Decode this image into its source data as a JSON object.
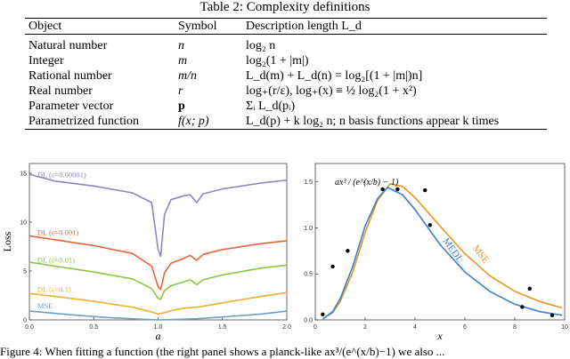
{
  "caption": "Table 2: Complexity definitions",
  "table": {
    "headers": [
      "Object",
      "Symbol",
      "Description length L_d"
    ],
    "rows": [
      {
        "object": "Natural number",
        "symbol": "n",
        "desc": "log₂ n"
      },
      {
        "object": "Integer",
        "symbol": "m",
        "desc": "log₂(1 + |m|)"
      },
      {
        "object": "Rational number",
        "symbol": "m/n",
        "desc": "L_d(m) + L_d(n) = log₂[(1 + |m|)n]"
      },
      {
        "object": "Real number",
        "symbol": "r",
        "desc": "log₊(r/ε),   log₊(x) ≡ ½ log₂(1 + x²)"
      },
      {
        "object": "Parameter vector",
        "symbol": "p",
        "desc": "Σᵢ L_d(pᵢ)"
      },
      {
        "object": "Parametrized function",
        "symbol": "f(x; p)",
        "desc": "L_d(p) + k log₂ n; n basis functions appear k times"
      }
    ]
  },
  "chart_data": [
    {
      "type": "line",
      "title": "",
      "xlabel": "a",
      "ylabel": "Loss",
      "xlim": [
        0,
        2
      ],
      "ylim": [
        0,
        16
      ],
      "xticks": [
        "0.0",
        "0.5",
        "1.0",
        "1.5",
        "2.0"
      ],
      "yticks": [
        "0",
        "5",
        "10",
        "15"
      ],
      "grid": false,
      "series": [
        {
          "name": "DL (ε=0.00001)",
          "color": "#8e86c6",
          "x": [
            0,
            0.2,
            0.5,
            0.8,
            0.95,
            1.0,
            1.02,
            1.05,
            1.1,
            1.2,
            1.25,
            1.3,
            1.35,
            1.5,
            1.8,
            2.0
          ],
          "y": [
            14.9,
            14.2,
            13.7,
            13.0,
            12.0,
            7.2,
            6.5,
            10.8,
            12.3,
            12.7,
            12.8,
            12.0,
            12.9,
            13.4,
            14.0,
            14.3
          ]
        },
        {
          "name": "DL (ε=0.001)",
          "color": "#e8643a",
          "x": [
            0,
            0.2,
            0.5,
            0.8,
            0.95,
            1.0,
            1.02,
            1.05,
            1.1,
            1.2,
            1.25,
            1.3,
            1.35,
            1.5,
            1.8,
            2.0
          ],
          "y": [
            8.6,
            8.2,
            7.6,
            6.8,
            5.5,
            3.4,
            3.1,
            4.8,
            5.8,
            6.3,
            6.6,
            6.1,
            6.7,
            7.2,
            7.8,
            8.1
          ]
        },
        {
          "name": "DL (ε=0.01)",
          "color": "#8cc63f",
          "x": [
            0,
            0.2,
            0.5,
            0.8,
            0.95,
            1.0,
            1.02,
            1.05,
            1.1,
            1.2,
            1.25,
            1.3,
            1.35,
            1.5,
            1.8,
            2.0
          ],
          "y": [
            5.9,
            5.5,
            4.9,
            4.2,
            3.2,
            2.2,
            2.1,
            3.0,
            3.5,
            3.9,
            4.1,
            3.6,
            4.1,
            4.6,
            5.3,
            5.6
          ]
        },
        {
          "name": "DL (ε=0.1)",
          "color": "#f0b030",
          "x": [
            0,
            0.2,
            0.5,
            0.8,
            0.95,
            1.0,
            1.05,
            1.1,
            1.2,
            1.3,
            1.35,
            1.5,
            1.8,
            2.0
          ],
          "y": [
            2.7,
            2.4,
            1.9,
            1.3,
            0.8,
            0.6,
            0.75,
            0.95,
            1.2,
            1.3,
            1.4,
            1.75,
            2.4,
            2.8
          ]
        },
        {
          "name": "MSE",
          "color": "#6aa0c8",
          "x": [
            0,
            0.3,
            0.6,
            0.9,
            1.0,
            1.1,
            1.3,
            1.5,
            1.8,
            2.0
          ],
          "y": [
            0.9,
            0.55,
            0.25,
            0.05,
            0.0,
            0.03,
            0.12,
            0.3,
            0.6,
            0.9
          ]
        }
      ]
    },
    {
      "type": "scatter",
      "title": "",
      "xlabel": "x",
      "ylabel": "",
      "xlim": [
        0,
        10
      ],
      "ylim": [
        0,
        1.7
      ],
      "xticks": [
        "0",
        "2",
        "4",
        "6",
        "8",
        "10"
      ],
      "yticks": [
        "0.0",
        "0.5",
        "1.0",
        "1.5"
      ],
      "grid": false,
      "formula_label": "ax³ / (e^(x/b) − 1)",
      "points": {
        "x": [
          0.3,
          0.7,
          1.3,
          2.7,
          3.3,
          4.4,
          4.6,
          8.3,
          8.6,
          9.5
        ],
        "y": [
          0.06,
          0.58,
          0.75,
          1.42,
          1.42,
          1.41,
          1.03,
          0.14,
          0.34,
          0.05
        ]
      },
      "series": [
        {
          "name": "MSE",
          "color": "#e8961e",
          "x": [
            0.3,
            0.7,
            1.0,
            1.5,
            2.0,
            2.5,
            3.0,
            3.5,
            4.0,
            5.0,
            6.0,
            7.0,
            8.0,
            9.0,
            9.9
          ],
          "y": [
            0.01,
            0.08,
            0.2,
            0.52,
            0.95,
            1.3,
            1.48,
            1.45,
            1.33,
            1.02,
            0.72,
            0.48,
            0.31,
            0.2,
            0.13
          ]
        },
        {
          "name": "MEDL",
          "color": "#3c7ec8",
          "x": [
            0.3,
            0.7,
            1.0,
            1.5,
            2.0,
            2.5,
            2.9,
            3.5,
            4.0,
            5.0,
            6.0,
            7.0,
            8.0,
            9.0,
            9.9
          ],
          "y": [
            0.01,
            0.09,
            0.23,
            0.58,
            1.02,
            1.32,
            1.44,
            1.36,
            1.2,
            0.82,
            0.52,
            0.31,
            0.17,
            0.09,
            0.05
          ]
        }
      ]
    }
  ],
  "bottom_text": "Figure 4: When fitting a function (the right panel shows a planck-like ax³/(e^(x/b)−1) we also ..."
}
